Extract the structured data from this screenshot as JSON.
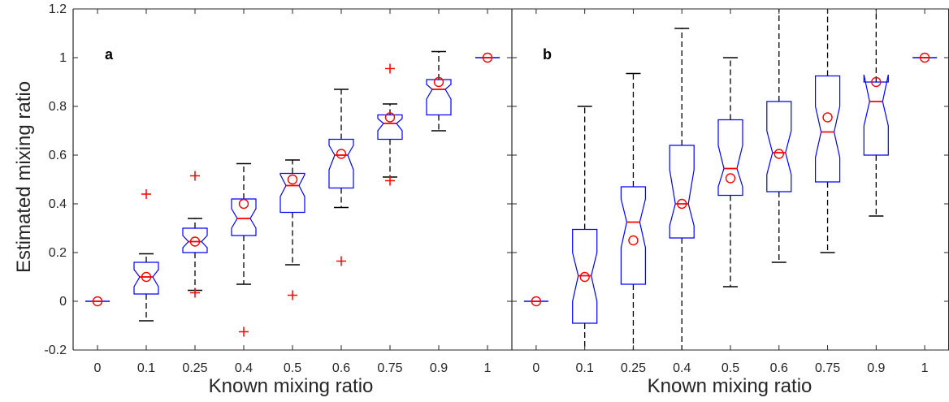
{
  "chart_data": [
    {
      "type": "boxplot",
      "panel_label": "a",
      "xlabel": "Known mixing ratio",
      "ylabel": "Estimated mixing ratio",
      "ylim": [
        -0.2,
        1.2
      ],
      "yticks": [
        "-0.2",
        "0",
        "0.2",
        "0.4",
        "0.6",
        "0.8",
        "1",
        "1.2"
      ],
      "categories": [
        "0",
        "0.1",
        "0.25",
        "0.4",
        "0.5",
        "0.6",
        "0.75",
        "0.9",
        "1"
      ],
      "boxes": [
        {
          "q1": 0,
          "median": 0,
          "q3": 0,
          "notch_lo": 0,
          "notch_hi": 0,
          "whisker_lo": 0,
          "whisker_hi": 0,
          "mean": 0,
          "outliers": []
        },
        {
          "q1": 0.03,
          "median": 0.1,
          "q3": 0.16,
          "notch_lo": 0.06,
          "notch_hi": 0.13,
          "whisker_lo": -0.08,
          "whisker_hi": 0.195,
          "mean": 0.1,
          "outliers": [
            0.44
          ]
        },
        {
          "q1": 0.2,
          "median": 0.245,
          "q3": 0.3,
          "notch_lo": 0.22,
          "notch_hi": 0.27,
          "whisker_lo": 0.045,
          "whisker_hi": 0.34,
          "mean": 0.245,
          "outliers": [
            0.515,
            0.035
          ]
        },
        {
          "q1": 0.27,
          "median": 0.34,
          "q3": 0.42,
          "notch_lo": 0.3,
          "notch_hi": 0.38,
          "whisker_lo": 0.07,
          "whisker_hi": 0.565,
          "mean": 0.4,
          "outliers": [
            -0.125
          ]
        },
        {
          "q1": 0.365,
          "median": 0.475,
          "q3": 0.525,
          "notch_lo": 0.43,
          "notch_hi": 0.52,
          "whisker_lo": 0.15,
          "whisker_hi": 0.58,
          "mean": 0.5,
          "outliers": [
            0.025
          ]
        },
        {
          "q1": 0.465,
          "median": 0.6,
          "q3": 0.665,
          "notch_lo": 0.54,
          "notch_hi": 0.64,
          "whisker_lo": 0.385,
          "whisker_hi": 0.87,
          "mean": 0.605,
          "outliers": [
            0.165
          ]
        },
        {
          "q1": 0.665,
          "median": 0.73,
          "q3": 0.765,
          "notch_lo": 0.7,
          "notch_hi": 0.75,
          "whisker_lo": 0.51,
          "whisker_hi": 0.81,
          "mean": 0.755,
          "outliers": [
            0.955,
            0.495
          ]
        },
        {
          "q1": 0.765,
          "median": 0.87,
          "q3": 0.91,
          "notch_lo": 0.83,
          "notch_hi": 0.89,
          "whisker_lo": 0.7,
          "whisker_hi": 1.025,
          "mean": 0.9,
          "outliers": []
        },
        {
          "q1": 1,
          "median": 1,
          "q3": 1,
          "notch_lo": 1,
          "notch_hi": 1,
          "whisker_lo": 1,
          "whisker_hi": 1,
          "mean": 1,
          "outliers": []
        }
      ]
    },
    {
      "type": "boxplot",
      "panel_label": "b",
      "xlabel": "Known mixing ratio",
      "ylim": [
        -0.2,
        1.2
      ],
      "categories": [
        "0",
        "0.1",
        "0.25",
        "0.4",
        "0.5",
        "0.6",
        "0.75",
        "0.9",
        "1"
      ],
      "boxes": [
        {
          "q1": 0,
          "median": 0,
          "q3": 0,
          "notch_lo": 0,
          "notch_hi": 0,
          "whisker_lo": 0,
          "whisker_hi": 0,
          "mean": 0,
          "outliers": []
        },
        {
          "q1": -0.09,
          "median": 0.105,
          "q3": 0.295,
          "notch_lo": 0.0,
          "notch_hi": 0.2,
          "whisker_lo": -0.25,
          "whisker_hi": 0.8,
          "mean": 0.1,
          "outliers": []
        },
        {
          "q1": 0.07,
          "median": 0.325,
          "q3": 0.47,
          "notch_lo": 0.22,
          "notch_hi": 0.42,
          "whisker_lo": -0.25,
          "whisker_hi": 0.935,
          "mean": 0.25,
          "outliers": []
        },
        {
          "q1": 0.26,
          "median": 0.4,
          "q3": 0.64,
          "notch_lo": 0.31,
          "notch_hi": 0.54,
          "whisker_lo": -0.25,
          "whisker_hi": 1.12,
          "mean": 0.4,
          "outliers": []
        },
        {
          "q1": 0.435,
          "median": 0.545,
          "q3": 0.745,
          "notch_lo": 0.47,
          "notch_hi": 0.64,
          "whisker_lo": 0.06,
          "whisker_hi": 1.0,
          "mean": 0.505,
          "outliers": []
        },
        {
          "q1": 0.45,
          "median": 0.61,
          "q3": 0.82,
          "notch_lo": 0.52,
          "notch_hi": 0.7,
          "whisker_lo": 0.16,
          "whisker_hi": 1.25,
          "mean": 0.605,
          "outliers": []
        },
        {
          "q1": 0.49,
          "median": 0.695,
          "q3": 0.925,
          "notch_lo": 0.59,
          "notch_hi": 0.8,
          "whisker_lo": 0.2,
          "whisker_hi": 1.25,
          "mean": 0.755,
          "outliers": []
        },
        {
          "q1": 0.6,
          "median": 0.82,
          "q3": 0.9,
          "notch_lo": 0.72,
          "notch_hi": 0.93,
          "whisker_lo": 0.35,
          "whisker_hi": 1.25,
          "mean": 0.9,
          "outliers": []
        },
        {
          "q1": 1,
          "median": 1,
          "q3": 1,
          "notch_lo": 1,
          "notch_hi": 1,
          "whisker_lo": 1,
          "whisker_hi": 1,
          "mean": 1,
          "outliers": []
        }
      ]
    }
  ]
}
